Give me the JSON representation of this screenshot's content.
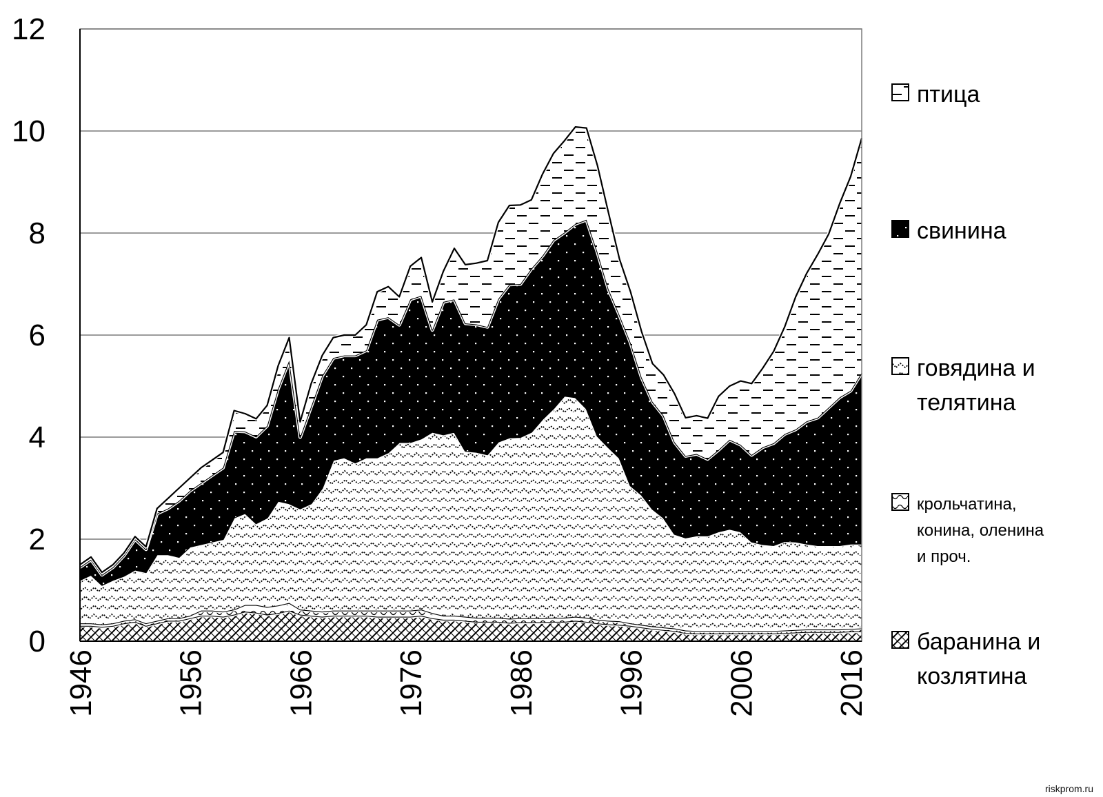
{
  "chart_data": {
    "type": "area",
    "stacked": true,
    "title": "",
    "xlabel": "",
    "ylabel": "",
    "xlim": [
      1946,
      2017
    ],
    "ylim": [
      0,
      12
    ],
    "yticks": [
      0,
      2,
      4,
      6,
      8,
      10,
      12
    ],
    "xticks": [
      1946,
      1956,
      1966,
      1976,
      1986,
      1996,
      2006,
      2016
    ],
    "grid": "horizontal",
    "legend_position": "right",
    "x": [
      1946,
      1947,
      1948,
      1949,
      1950,
      1951,
      1952,
      1953,
      1954,
      1955,
      1956,
      1957,
      1958,
      1959,
      1960,
      1961,
      1962,
      1963,
      1964,
      1965,
      1966,
      1967,
      1968,
      1969,
      1970,
      1971,
      1972,
      1973,
      1974,
      1975,
      1976,
      1977,
      1978,
      1979,
      1980,
      1981,
      1982,
      1983,
      1984,
      1985,
      1986,
      1987,
      1988,
      1989,
      1990,
      1991,
      1992,
      1993,
      1994,
      1995,
      1996,
      1997,
      1998,
      1999,
      2000,
      2001,
      2002,
      2003,
      2004,
      2005,
      2006,
      2007,
      2008,
      2009,
      2010,
      2011,
      2012,
      2013,
      2014,
      2015,
      2016,
      2017
    ],
    "series": [
      {
        "name": "баранина и козлятина",
        "pattern": "checker",
        "values": [
          0.3,
          0.3,
          0.28,
          0.3,
          0.35,
          0.38,
          0.3,
          0.35,
          0.4,
          0.4,
          0.45,
          0.5,
          0.5,
          0.48,
          0.52,
          0.58,
          0.56,
          0.52,
          0.55,
          0.6,
          0.52,
          0.5,
          0.48,
          0.5,
          0.5,
          0.5,
          0.5,
          0.48,
          0.48,
          0.48,
          0.48,
          0.5,
          0.45,
          0.42,
          0.42,
          0.4,
          0.38,
          0.38,
          0.38,
          0.36,
          0.37,
          0.37,
          0.37,
          0.38,
          0.38,
          0.4,
          0.38,
          0.35,
          0.33,
          0.32,
          0.3,
          0.27,
          0.24,
          0.22,
          0.2,
          0.16,
          0.15,
          0.15,
          0.15,
          0.15,
          0.15,
          0.15,
          0.15,
          0.15,
          0.16,
          0.17,
          0.18,
          0.18,
          0.18,
          0.18,
          0.19,
          0.19
        ]
      },
      {
        "name": "крольчатина, конина, оленина и проч.",
        "pattern": "ripple",
        "values": [
          0.05,
          0.05,
          0.05,
          0.05,
          0.05,
          0.05,
          0.05,
          0.05,
          0.05,
          0.05,
          0.05,
          0.1,
          0.1,
          0.1,
          0.1,
          0.13,
          0.15,
          0.15,
          0.15,
          0.15,
          0.1,
          0.1,
          0.1,
          0.1,
          0.1,
          0.1,
          0.1,
          0.12,
          0.12,
          0.12,
          0.12,
          0.12,
          0.1,
          0.08,
          0.08,
          0.08,
          0.08,
          0.08,
          0.08,
          0.08,
          0.08,
          0.08,
          0.08,
          0.08,
          0.08,
          0.08,
          0.08,
          0.07,
          0.07,
          0.07,
          0.05,
          0.05,
          0.05,
          0.05,
          0.05,
          0.05,
          0.05,
          0.05,
          0.05,
          0.05,
          0.05,
          0.05,
          0.05,
          0.05,
          0.05,
          0.05,
          0.05,
          0.05,
          0.05,
          0.05,
          0.05,
          0.06
        ]
      },
      {
        "name": "говядина и телятина",
        "pattern": "scales",
        "values": [
          0.85,
          0.95,
          0.77,
          0.85,
          0.88,
          0.97,
          1.0,
          1.3,
          1.25,
          1.2,
          1.35,
          1.3,
          1.35,
          1.42,
          1.8,
          1.8,
          1.6,
          1.75,
          2.05,
          1.95,
          1.98,
          2.1,
          2.42,
          2.95,
          3.0,
          2.9,
          3.0,
          3.0,
          3.1,
          3.3,
          3.3,
          3.35,
          3.55,
          3.55,
          3.6,
          3.25,
          3.25,
          3.2,
          3.45,
          3.55,
          3.55,
          3.65,
          3.9,
          4.1,
          4.35,
          4.3,
          4.1,
          3.6,
          3.4,
          3.2,
          2.7,
          2.55,
          2.3,
          2.15,
          1.85,
          1.82,
          1.87,
          1.87,
          1.95,
          2.0,
          1.95,
          1.75,
          1.7,
          1.68,
          1.75,
          1.73,
          1.68,
          1.65,
          1.65,
          1.65,
          1.67,
          1.66
        ]
      },
      {
        "name": "свинина",
        "pattern": "dots",
        "values": [
          0.25,
          0.3,
          0.2,
          0.25,
          0.4,
          0.6,
          0.45,
          0.8,
          0.9,
          1.1,
          1.1,
          1.2,
          1.3,
          1.4,
          1.7,
          1.6,
          1.7,
          1.8,
          2.2,
          2.8,
          1.4,
          1.9,
          2.2,
          2.0,
          2.0,
          2.1,
          2.1,
          2.7,
          2.65,
          2.3,
          2.8,
          2.8,
          2.0,
          2.6,
          2.6,
          2.5,
          2.5,
          2.5,
          2.8,
          3.0,
          3.0,
          3.2,
          3.2,
          3.3,
          3.2,
          3.4,
          3.7,
          3.6,
          3.1,
          2.8,
          2.8,
          2.3,
          2.1,
          2.0,
          1.8,
          1.6,
          1.6,
          1.5,
          1.6,
          1.75,
          1.7,
          1.7,
          1.9,
          2.0,
          2.1,
          2.2,
          2.4,
          2.5,
          2.7,
          2.9,
          3.0,
          3.35
        ]
      },
      {
        "name": "птица",
        "pattern": "dashes",
        "values": [
          0.05,
          0.05,
          0.05,
          0.05,
          0.05,
          0.05,
          0.05,
          0.1,
          0.2,
          0.25,
          0.25,
          0.3,
          0.3,
          0.3,
          0.4,
          0.35,
          0.35,
          0.4,
          0.45,
          0.45,
          0.3,
          0.45,
          0.4,
          0.4,
          0.4,
          0.4,
          0.5,
          0.55,
          0.6,
          0.55,
          0.65,
          0.75,
          0.55,
          0.6,
          1.0,
          1.15,
          1.2,
          1.3,
          1.5,
          1.55,
          1.55,
          1.35,
          1.6,
          1.7,
          1.8,
          1.9,
          1.8,
          1.7,
          1.5,
          1.1,
          1.0,
          0.9,
          0.75,
          0.8,
          0.95,
          0.75,
          0.75,
          0.8,
          1.05,
          1.05,
          1.25,
          1.4,
          1.55,
          1.8,
          2.1,
          2.6,
          2.9,
          3.2,
          3.4,
          3.8,
          4.2,
          4.6
        ]
      }
    ]
  },
  "watermark": "riskprom.ru"
}
